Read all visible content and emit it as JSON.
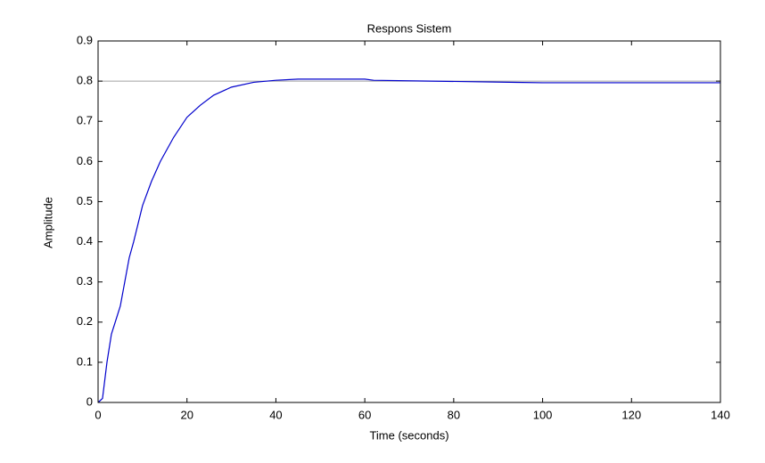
{
  "chart_data": {
    "type": "line",
    "title": "Respons Sistem",
    "x_label": "Time (seconds)",
    "y_label": "Amplitude",
    "x": [
      0,
      1,
      2,
      3,
      5,
      7,
      8,
      10,
      12,
      14,
      17,
      20,
      23,
      26,
      30,
      35,
      40,
      45,
      50,
      60,
      62,
      75,
      94,
      100,
      140
    ],
    "series": [
      {
        "color": "#0000cc",
        "values": [
          0,
          0.01,
          0.1,
          0.17,
          0.24,
          0.36,
          0.4,
          0.49,
          0.55,
          0.6,
          0.66,
          0.71,
          0.74,
          0.765,
          0.785,
          0.797,
          0.802,
          0.805,
          0.805,
          0.805,
          0.802,
          0.8,
          0.797,
          0.796,
          0.796
        ]
      }
    ],
    "steady_state": {
      "value": 0.8,
      "color": "#a0a0a0"
    },
    "xlim": [
      0,
      140
    ],
    "xticks": [
      0,
      20,
      40,
      60,
      80,
      100,
      120,
      140
    ],
    "ylim": [
      0,
      0.9
    ],
    "yticks": [
      0,
      0.1,
      0.2,
      0.3,
      0.4,
      0.5,
      0.6,
      0.7,
      0.8,
      0.9
    ],
    "grid": false
  }
}
